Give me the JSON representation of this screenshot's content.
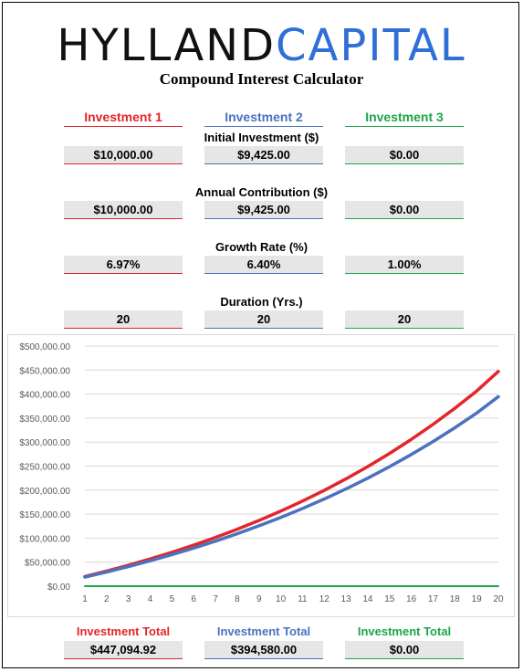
{
  "header": {
    "logo_part1": "HYLLAND",
    "logo_part2": "CAPITAL",
    "title": "Compound Interest Calculator"
  },
  "colors": {
    "investment1": "#e3262b",
    "investment2": "#4b72be",
    "investment3": "#1aa64a"
  },
  "investments": [
    {
      "label": "Investment 1",
      "initial": "$10,000.00",
      "contribution": "$10,000.00",
      "rate": "6.97%",
      "duration": "20",
      "total_label": "Investment Total",
      "total": "$447,094.92"
    },
    {
      "label": "Investment 2",
      "initial": "$9,425.00",
      "contribution": "$9,425.00",
      "rate": "6.40%",
      "duration": "20",
      "total_label": "Investment Total",
      "total": "$394,580.00"
    },
    {
      "label": "Investment 3",
      "initial": "$0.00",
      "contribution": "$0.00",
      "rate": "1.00%",
      "duration": "20",
      "total_label": "Investment Total",
      "total": "$0.00"
    }
  ],
  "labels": {
    "initial": "Initial Investment ($)",
    "contribution": "Annual Contribution ($)",
    "rate": "Growth Rate (%)",
    "duration": "Duration (Yrs.)"
  },
  "chart_data": {
    "type": "line",
    "x": [
      1,
      2,
      3,
      4,
      5,
      6,
      7,
      8,
      9,
      10,
      11,
      12,
      13,
      14,
      15,
      16,
      17,
      18,
      19,
      20
    ],
    "ylim": [
      0,
      500000
    ],
    "yticks": [
      "$0.00",
      "$50,000.00",
      "$100,000.00",
      "$150,000.00",
      "$200,000.00",
      "$250,000.00",
      "$300,000.00",
      "$350,000.00",
      "$400,000.00",
      "$450,000.00",
      "$500,000.00"
    ],
    "grid": true,
    "series": [
      {
        "color": "#e3262b",
        "values": [
          20000,
          31394,
          43582,
          56620,
          70567,
          85485,
          101442,
          118511,
          136769,
          156300,
          177192,
          199540,
          223446,
          249018,
          276372,
          305632,
          336931,
          370412,
          406226,
          447095
        ]
      },
      {
        "color": "#4b72be",
        "values": [
          18850,
          29481,
          40795,
          52836,
          65647,
          79283,
          93790,
          109224,
          125649,
          143126,
          161721,
          181509,
          202564,
          224969,
          248805,
          274168,
          301155,
          329870,
          360424,
          394580
        ]
      },
      {
        "color": "#1aa64a",
        "values": [
          0,
          0,
          0,
          0,
          0,
          0,
          0,
          0,
          0,
          0,
          0,
          0,
          0,
          0,
          0,
          0,
          0,
          0,
          0,
          0
        ]
      }
    ]
  }
}
